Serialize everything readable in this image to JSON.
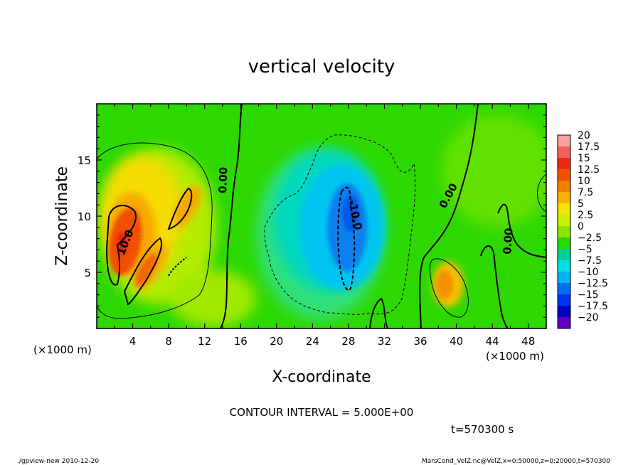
{
  "chart_data": {
    "type": "heatmap",
    "title": "vertical velocity",
    "xlabel": "X-coordinate",
    "ylabel": "Z-coordinate",
    "x_units": "(×1000 m)",
    "xlim": [
      0,
      50
    ],
    "ylim": [
      0,
      20
    ],
    "x_ticks": [
      4,
      8,
      12,
      16,
      20,
      24,
      28,
      32,
      36,
      40,
      44,
      48
    ],
    "y_ticks": [
      5,
      10,
      15
    ],
    "colorbar": {
      "levels": [
        20,
        17.5,
        15,
        12.5,
        10,
        7.5,
        5,
        2.5,
        0,
        -2.5,
        -5,
        -7.5,
        -10,
        -12.5,
        -15,
        -17.5,
        -20
      ],
      "labels": [
        "20",
        "17.5",
        "15",
        "12.5",
        "10",
        "7.5",
        "5",
        "2.5",
        "0",
        "−2.5",
        "−5",
        "−7.5",
        "−10",
        "−12.5",
        "−15",
        "−17.5",
        "−20"
      ],
      "colors": [
        "#f8a0a0",
        "#f46060",
        "#f02818",
        "#f05000",
        "#f48000",
        "#f8b000",
        "#f4e400",
        "#c8f000",
        "#8ce400",
        "#28d800",
        "#00d098",
        "#00e0e0",
        "#00b4f0",
        "#0070f0",
        "#0030f0",
        "#0000c0",
        "#6000c0"
      ]
    },
    "contour_interval": "CONTOUR INTERVAL = 5.000E+00",
    "contour_labels": [
      "10.0",
      "0.00",
      "-10.0",
      "0.00",
      "0.00"
    ],
    "time_label": "t=570300 s",
    "grid": false,
    "legend": "right"
  },
  "footer": {
    "left": "./gpview-new  2010-12-20",
    "right": "MarsCond_VelZ.nc@VelZ,x=0:50000,z=0:20000,t=570300"
  }
}
